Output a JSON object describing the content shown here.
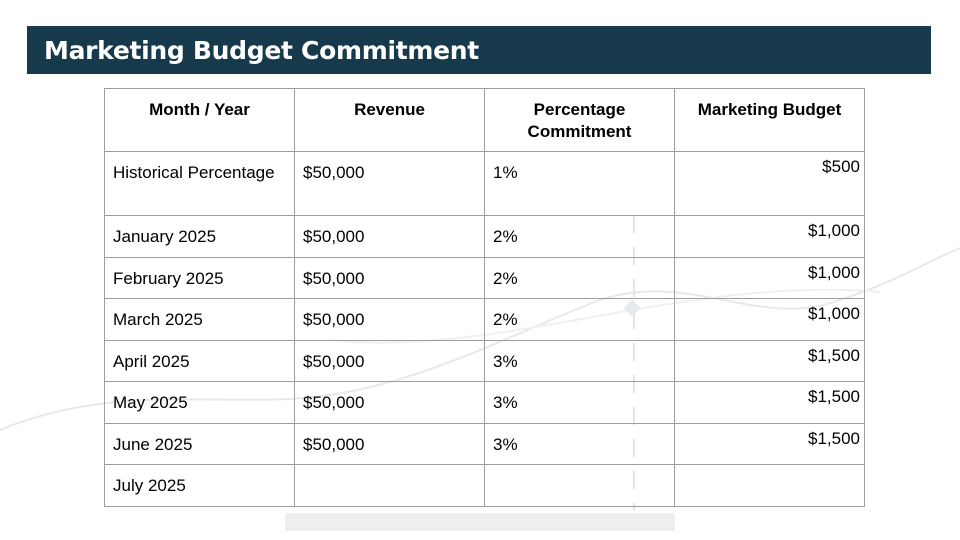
{
  "slide": {
    "title": "Marketing Budget Commitment"
  },
  "table": {
    "headers": [
      "Month / Year",
      "Revenue",
      "Percentage Commitment",
      "Marketing Budget"
    ],
    "rows": [
      [
        "Historical Percentage",
        "$50,000",
        "1%",
        "$500"
      ],
      [
        "January 2025",
        "$50,000",
        "2%",
        "$1,000"
      ],
      [
        "February 2025",
        "$50,000",
        "2%",
        "$1,000"
      ],
      [
        "March 2025",
        "$50,000",
        "2%",
        "$1,000"
      ],
      [
        "April 2025",
        "$50,000",
        "3%",
        "$1,500"
      ],
      [
        "May 2025",
        "$50,000",
        "3%",
        "$1,500"
      ],
      [
        "June 2025",
        "$50,000",
        "3%",
        "$1,500"
      ],
      [
        "July 2025",
        "",
        "",
        ""
      ]
    ]
  },
  "colors": {
    "title_bar": "#163a4c",
    "title_text": "#ffffff",
    "grid_border": "#9e9e9e"
  }
}
